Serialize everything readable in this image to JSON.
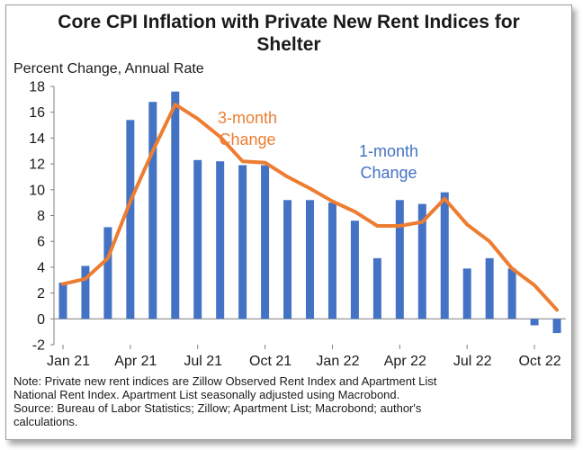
{
  "title_line1": "Core CPI Inflation with Private New Rent Indices for",
  "title_line2": "Shelter",
  "notes": [
    "Note: Private new rent indices are Zillow Observed Rent Index and Apartment List",
    "National Rent Index. Apartment List seasonally adjusted using Macrobond.",
    "Source: Bureau of Labor Statistics; Zillow; Apartment List; Macrobond; author's",
    "calculations."
  ],
  "chart_data": {
    "type": "bar",
    "title": "Core CPI Inflation with Private New Rent Indices for Shelter",
    "ylabel": "Percent Change, Annual Rate",
    "xlabel": "",
    "ylim": [
      -2,
      18
    ],
    "yticks": [
      -2,
      0,
      2,
      4,
      6,
      8,
      10,
      12,
      14,
      16,
      18
    ],
    "grid": false,
    "categories": [
      "Jan 21",
      "Feb 21",
      "Mar 21",
      "Apr 21",
      "May 21",
      "Jun 21",
      "Jul 21",
      "Aug 21",
      "Sep 21",
      "Oct 21",
      "Nov 21",
      "Dec 21",
      "Jan 22",
      "Feb 22",
      "Mar 22",
      "Apr 22",
      "May 22",
      "Jun 22",
      "Jul 22",
      "Aug 22",
      "Sep 22",
      "Oct 22",
      "Nov 22"
    ],
    "tick_labels": [
      {
        "index": 0,
        "label": "Jan 21"
      },
      {
        "index": 3,
        "label": "Apr 21"
      },
      {
        "index": 6,
        "label": "Jul 21"
      },
      {
        "index": 9,
        "label": "Oct 21"
      },
      {
        "index": 12,
        "label": "Jan 22"
      },
      {
        "index": 15,
        "label": "Apr 22"
      },
      {
        "index": 18,
        "label": "Jul 22"
      },
      {
        "index": 21,
        "label": "Oct 22"
      }
    ],
    "series": [
      {
        "name": "1-month Change",
        "type": "bar",
        "color": "#4472C4",
        "values": [
          2.8,
          4.1,
          7.1,
          15.4,
          16.8,
          17.6,
          12.3,
          12.2,
          11.9,
          11.9,
          9.2,
          9.2,
          9.0,
          7.6,
          4.7,
          9.2,
          8.9,
          9.8,
          3.9,
          4.7,
          3.9,
          -0.5,
          -1.1
        ]
      },
      {
        "name": "3-month Change",
        "type": "line",
        "color": "#ED7D31",
        "values": [
          2.7,
          3.1,
          4.7,
          9.1,
          13.0,
          16.6,
          15.5,
          14.1,
          12.2,
          12.1,
          11.0,
          10.1,
          9.1,
          8.3,
          7.2,
          7.2,
          7.5,
          9.3,
          7.3,
          6.0,
          3.9,
          2.6,
          0.7
        ]
      }
    ],
    "annotations": [
      {
        "lines": [
          "3-month",
          "Change"
        ],
        "series": "3-month Change",
        "color": "#ED7D31"
      },
      {
        "lines": [
          "1-month",
          "Change"
        ],
        "series": "1-month Change",
        "color": "#4472C4"
      }
    ]
  }
}
